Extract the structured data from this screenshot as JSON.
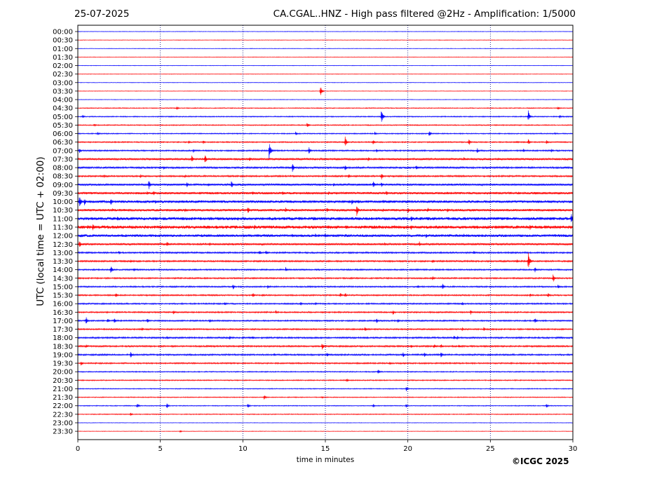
{
  "header": {
    "date": "25-07-2025",
    "title": "CA.CGAL..HNZ - High pass filtered @2Hz - Amplification: 1/5000"
  },
  "footer": {
    "copyright": "©ICGC 2025"
  },
  "chart_data": {
    "type": "line",
    "title": "CA.CGAL..HNZ - High pass filtered @2Hz - Amplification: 1/5000",
    "xlabel": "time in minutes",
    "ylabel": "UTC (local time = UTC + 02:00)",
    "xlim": [
      0,
      30
    ],
    "xticks": [
      0,
      5,
      10,
      15,
      20,
      25,
      30
    ],
    "vertical_gridlines_at": [
      5,
      10,
      15,
      20,
      25
    ],
    "grid": "vertical dotted",
    "row_colors": [
      "#0000ff",
      "#ff0000"
    ],
    "rows": [
      "00:00",
      "00:30",
      "01:00",
      "01:30",
      "02:00",
      "02:30",
      "03:00",
      "03:30",
      "04:00",
      "04:30",
      "05:00",
      "05:30",
      "06:00",
      "06:30",
      "07:00",
      "07:30",
      "08:00",
      "08:30",
      "09:00",
      "09:30",
      "10:00",
      "10:30",
      "11:00",
      "11:30",
      "12:00",
      "12:30",
      "13:00",
      "13:30",
      "14:00",
      "14:30",
      "15:00",
      "15:30",
      "16:00",
      "16:30",
      "17:00",
      "17:30",
      "18:00",
      "18:30",
      "19:00",
      "19:30",
      "20:00",
      "20:30",
      "21:00",
      "21:30",
      "22:00",
      "22:30",
      "23:00",
      "23:30"
    ],
    "noise_levels": [
      0.3,
      0.3,
      0.3,
      0.3,
      0.3,
      0.3,
      0.3,
      0.3,
      0.3,
      0.5,
      0.6,
      0.6,
      0.6,
      0.7,
      0.8,
      1.2,
      1.0,
      0.9,
      1.2,
      1.4,
      1.6,
      1.4,
      1.8,
      1.9,
      1.6,
      1.2,
      0.9,
      0.9,
      0.8,
      0.8,
      0.8,
      0.8,
      0.8,
      0.8,
      0.8,
      0.8,
      0.9,
      0.9,
      0.9,
      0.8,
      0.6,
      0.6,
      0.5,
      0.5,
      0.5,
      0.5,
      0.3,
      0.3
    ],
    "events": [
      [
        7,
        14.7,
        8
      ],
      [
        9,
        6.0,
        3
      ],
      [
        9,
        29.1,
        3
      ],
      [
        10,
        0.3,
        3
      ],
      [
        10,
        18.4,
        11
      ],
      [
        10,
        27.3,
        9
      ],
      [
        10,
        29.2,
        3
      ],
      [
        10,
        25.5,
        1
      ],
      [
        11,
        1.0,
        3
      ],
      [
        11,
        13.9,
        5
      ],
      [
        12,
        1.2,
        3
      ],
      [
        12,
        13.2,
        3
      ],
      [
        12,
        18.0,
        3
      ],
      [
        12,
        21.3,
        5
      ],
      [
        12,
        28.9,
        2
      ],
      [
        13,
        6.7,
        3
      ],
      [
        13,
        7.6,
        3
      ],
      [
        13,
        16.2,
        8
      ],
      [
        13,
        17.9,
        4
      ],
      [
        13,
        23.7,
        5
      ],
      [
        13,
        26.6,
        2
      ],
      [
        13,
        27.3,
        5
      ],
      [
        13,
        28.4,
        4
      ],
      [
        14,
        0.1,
        4
      ],
      [
        14,
        7.0,
        3
      ],
      [
        14,
        11.6,
        14
      ],
      [
        14,
        14.0,
        6
      ],
      [
        14,
        18.1,
        3
      ],
      [
        14,
        24.2,
        4
      ],
      [
        14,
        27.0,
        3
      ],
      [
        14,
        28.7,
        3
      ],
      [
        15,
        6.9,
        6
      ],
      [
        15,
        7.7,
        8
      ],
      [
        15,
        10.4,
        4
      ],
      [
        15,
        17.6,
        4
      ],
      [
        15,
        23.4,
        3
      ],
      [
        15,
        25.5,
        2
      ],
      [
        16,
        5.2,
        3
      ],
      [
        16,
        13.0,
        7
      ],
      [
        16,
        16.2,
        5
      ],
      [
        16,
        20.5,
        4
      ],
      [
        17,
        1.6,
        3
      ],
      [
        17,
        3.8,
        3
      ],
      [
        17,
        6.5,
        3
      ],
      [
        17,
        16.4,
        4
      ],
      [
        17,
        18.4,
        6
      ],
      [
        18,
        4.3,
        7
      ],
      [
        18,
        6.6,
        5
      ],
      [
        18,
        7.9,
        3
      ],
      [
        18,
        9.3,
        7
      ],
      [
        18,
        15.5,
        3
      ],
      [
        18,
        17.9,
        6
      ],
      [
        18,
        18.4,
        4
      ],
      [
        19,
        4.2,
        4
      ],
      [
        19,
        4.6,
        4
      ],
      [
        19,
        10.6,
        3
      ],
      [
        19,
        12.4,
        3
      ],
      [
        19,
        15.2,
        3
      ],
      [
        19,
        18.7,
        4
      ],
      [
        19,
        26.7,
        3
      ],
      [
        19,
        27.7,
        3
      ],
      [
        20,
        0.1,
        10
      ],
      [
        20,
        0.4,
        6
      ],
      [
        20,
        2.0,
        6
      ],
      [
        20,
        4.7,
        3
      ],
      [
        20,
        16.6,
        5
      ],
      [
        20,
        17.0,
        4
      ],
      [
        20,
        18.5,
        3
      ],
      [
        21,
        2.1,
        3
      ],
      [
        21,
        6.5,
        3
      ],
      [
        21,
        10.3,
        6
      ],
      [
        21,
        12.6,
        4
      ],
      [
        21,
        15.1,
        4
      ],
      [
        21,
        16.9,
        9
      ],
      [
        21,
        18.5,
        3
      ],
      [
        21,
        20.0,
        5
      ],
      [
        21,
        21.2,
        4
      ],
      [
        21,
        22.4,
        4
      ],
      [
        22,
        2.4,
        4
      ],
      [
        22,
        5.2,
        3
      ],
      [
        22,
        9.7,
        3
      ],
      [
        22,
        14.3,
        3
      ],
      [
        22,
        20.2,
        5
      ],
      [
        22,
        29.9,
        8
      ],
      [
        23,
        0.6,
        4
      ],
      [
        23,
        0.9,
        6
      ],
      [
        23,
        10.7,
        4
      ],
      [
        23,
        15.2,
        3
      ],
      [
        23,
        16.3,
        3
      ],
      [
        23,
        19.2,
        3
      ],
      [
        23,
        20.2,
        4
      ],
      [
        23,
        27.4,
        5
      ],
      [
        24,
        0.2,
        3
      ],
      [
        24,
        4.7,
        3
      ],
      [
        24,
        13.0,
        4
      ],
      [
        24,
        14.4,
        3
      ],
      [
        24,
        15.0,
        4
      ],
      [
        24,
        16.2,
        3
      ],
      [
        24,
        21.1,
        4
      ],
      [
        24,
        23.4,
        3
      ],
      [
        24,
        26.8,
        3
      ],
      [
        25,
        0.1,
        6
      ],
      [
        25,
        5.4,
        5
      ],
      [
        25,
        8.0,
        3
      ],
      [
        25,
        18.6,
        3
      ],
      [
        25,
        20.7,
        4
      ],
      [
        26,
        2.5,
        3
      ],
      [
        26,
        11.0,
        4
      ],
      [
        26,
        11.4,
        4
      ],
      [
        26,
        24.0,
        3
      ],
      [
        27,
        3.2,
        3
      ],
      [
        27,
        21.5,
        3
      ],
      [
        27,
        26.6,
        3
      ],
      [
        27,
        27.3,
        14
      ],
      [
        28,
        2.0,
        7
      ],
      [
        28,
        3.4,
        3
      ],
      [
        28,
        12.6,
        4
      ],
      [
        28,
        27.7,
        4
      ],
      [
        29,
        21.5,
        4
      ],
      [
        29,
        28.8,
        7
      ],
      [
        30,
        9.4,
        5
      ],
      [
        30,
        11.5,
        3
      ],
      [
        30,
        20.6,
        3
      ],
      [
        30,
        22.1,
        5
      ],
      [
        30,
        29.1,
        4
      ],
      [
        31,
        2.3,
        4
      ],
      [
        31,
        10.6,
        4
      ],
      [
        31,
        11.2,
        3
      ],
      [
        31,
        15.9,
        4
      ],
      [
        31,
        16.2,
        4
      ],
      [
        31,
        27.4,
        3
      ],
      [
        31,
        28.5,
        4
      ],
      [
        32,
        8.9,
        3
      ],
      [
        32,
        13.5,
        3
      ],
      [
        32,
        14.4,
        3
      ],
      [
        32,
        23.3,
        3
      ],
      [
        33,
        5.8,
        4
      ],
      [
        33,
        12.0,
        3
      ],
      [
        33,
        19.1,
        4
      ],
      [
        33,
        23.8,
        4
      ],
      [
        34,
        0.5,
        6
      ],
      [
        34,
        1.8,
        4
      ],
      [
        34,
        2.2,
        5
      ],
      [
        34,
        4.2,
        4
      ],
      [
        34,
        8.0,
        3
      ],
      [
        34,
        18.1,
        4
      ],
      [
        34,
        19.4,
        3
      ],
      [
        34,
        27.7,
        5
      ],
      [
        35,
        3.9,
        3
      ],
      [
        35,
        7.0,
        2
      ],
      [
        35,
        17.4,
        4
      ],
      [
        35,
        23.3,
        3
      ],
      [
        35,
        24.6,
        3
      ],
      [
        36,
        5.4,
        3
      ],
      [
        36,
        9.2,
        3
      ],
      [
        36,
        10.6,
        3
      ],
      [
        36,
        22.8,
        4
      ],
      [
        36,
        23.0,
        3
      ],
      [
        37,
        0.5,
        3
      ],
      [
        37,
        14.8,
        6
      ],
      [
        37,
        20.2,
        3
      ],
      [
        37,
        21.6,
        4
      ],
      [
        37,
        22.0,
        4
      ],
      [
        37,
        23.1,
        3
      ],
      [
        38,
        3.2,
        5
      ],
      [
        38,
        11.9,
        3
      ],
      [
        38,
        15.1,
        4
      ],
      [
        38,
        19.7,
        5
      ],
      [
        38,
        21.0,
        4
      ],
      [
        38,
        22.0,
        5
      ],
      [
        39,
        0.2,
        4
      ],
      [
        39,
        18.9,
        3
      ],
      [
        40,
        18.2,
        4
      ],
      [
        41,
        16.3,
        3
      ],
      [
        42,
        19.9,
        4
      ],
      [
        43,
        11.3,
        4
      ],
      [
        43,
        14.8,
        2
      ],
      [
        44,
        3.6,
        4
      ],
      [
        44,
        5.4,
        4
      ],
      [
        44,
        10.3,
        4
      ],
      [
        44,
        17.9,
        3
      ],
      [
        44,
        19.9,
        3
      ],
      [
        44,
        28.4,
        4
      ],
      [
        45,
        3.2,
        3
      ],
      [
        47,
        6.2,
        2
      ]
    ]
  }
}
